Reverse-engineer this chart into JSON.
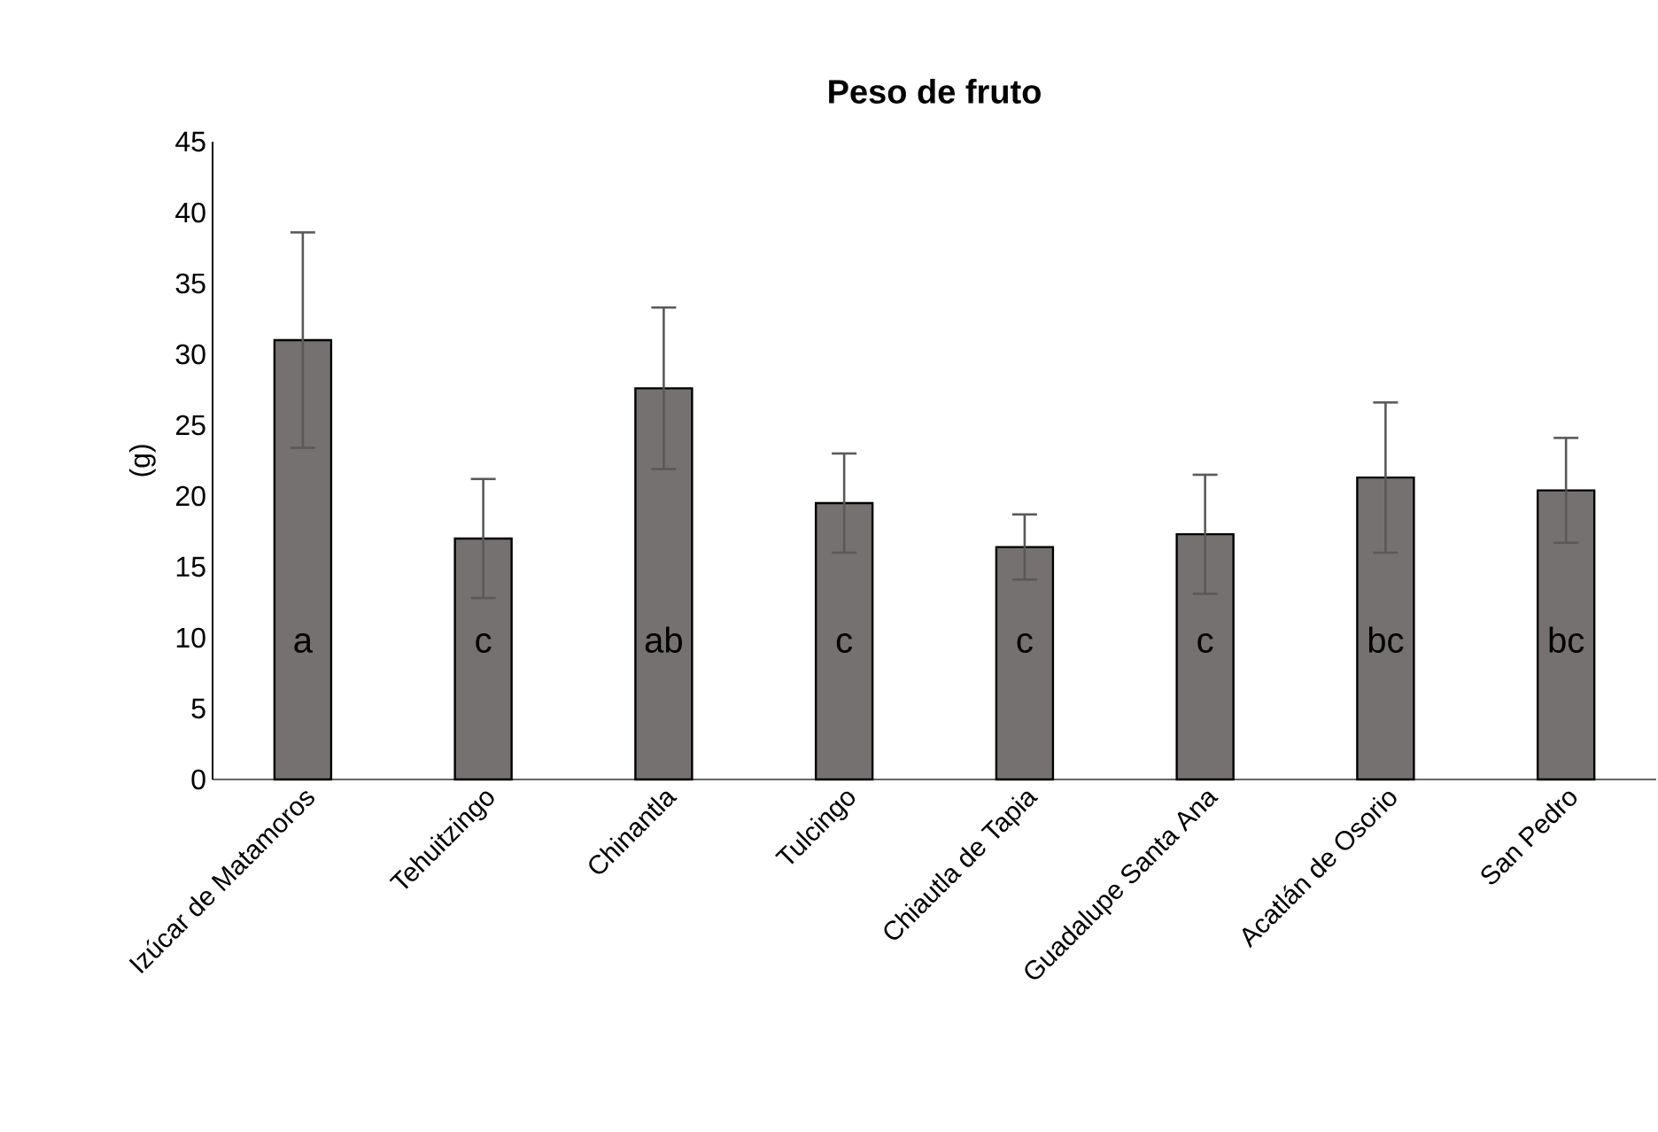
{
  "chart_data": {
    "type": "bar",
    "title": "Peso de fruto",
    "ylabel": "(g)",
    "categories": [
      "Izúcar de Matamoros",
      "Tehuitzingo",
      "Chinantla",
      "Tulcingo",
      "Chiautla de Tapia",
      "Guadalupe  Santa Ana",
      "Acatlán de Osorio",
      "San Pedro"
    ],
    "values": [
      31.0,
      17.0,
      27.6,
      19.5,
      16.4,
      17.3,
      21.3,
      20.4
    ],
    "errors": [
      7.6,
      4.2,
      5.7,
      3.5,
      2.3,
      4.2,
      5.3,
      3.7
    ],
    "color": "#767171",
    "ylim": [
      0,
      45
    ],
    "yticks": [
      0,
      5,
      10,
      15,
      20,
      25,
      30,
      35,
      40,
      45
    ],
    "value_labels": [
      "a",
      "c",
      "ab",
      "c",
      "c",
      "c",
      "bc",
      "bc"
    ],
    "grid": false
  }
}
